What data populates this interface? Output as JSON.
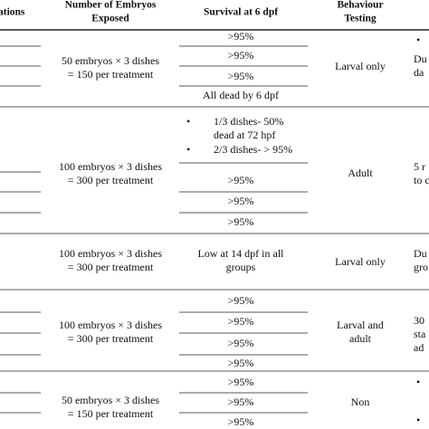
{
  "header": {
    "col1": "ations",
    "embryos": [
      "Number of Embryos",
      "Exposed"
    ],
    "survival": "Survival at 6 dpf",
    "behaviour": [
      "Behaviour",
      "Testing"
    ]
  },
  "groups": [
    {
      "embryos": [
        "50 embryos × 3 dishes",
        "= 150 per treatment"
      ],
      "survival": [
        ">95%",
        ">95%",
        ">95%",
        "All dead by 6 dpf"
      ],
      "behaviour": [
        "Larval only"
      ],
      "notes": [
        "Du",
        "da"
      ]
    },
    {
      "embryos": [
        "100 embryos × 3 dishes",
        "= 300 per treatment"
      ],
      "survival": [
        "1/3 dishes- 50%",
        "dead at 72 hpf",
        "2/3 dishes- > 95%",
        ">95%",
        ">95%",
        ">95%"
      ],
      "behaviour": [
        "Adult"
      ],
      "notes": [
        "5 r",
        "to c"
      ]
    },
    {
      "embryos": [
        "100 embryos × 3 dishes",
        "= 300 per treatment"
      ],
      "survival": [
        "Low at 14 dpf in all",
        "groups"
      ],
      "behaviour": [
        "Larval only"
      ],
      "notes": [
        "Du",
        "gro"
      ]
    },
    {
      "embryos": [
        "100 embryos × 3 dishes",
        "= 300 per treatment"
      ],
      "survival": [
        ">95%",
        ">95%",
        ">95%",
        ">95%"
      ],
      "behaviour": [
        "Larval and",
        "adult"
      ],
      "notes": [
        "30",
        "sta",
        "ad"
      ]
    },
    {
      "embryos": [
        "50 embryos × 3 dishes",
        "= 150 per treatment"
      ],
      "survival": [
        ">95%",
        ">95%",
        ">95%"
      ],
      "behaviour": [
        "Non"
      ],
      "notes": []
    }
  ]
}
